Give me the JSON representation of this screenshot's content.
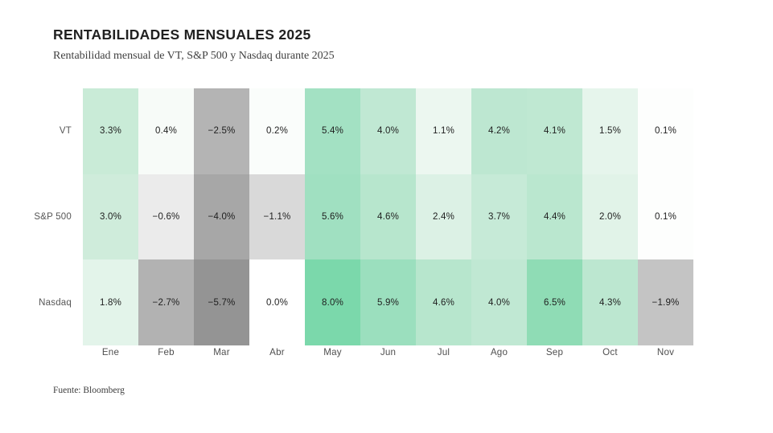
{
  "colors": {
    "background": "#ffffff",
    "title_text": "#212121",
    "subtitle_text": "#3f3f3f",
    "axis_label_text": "#4f4f4f",
    "cell_value_text": "#1e1e1e",
    "max_positive_green": "#7bd8ab",
    "max_negative_gray": "#949494",
    "zero_white": "#ffffff"
  },
  "chart_data": {
    "type": "heatmap",
    "title": "RENTABILIDADES MENSUALES 2025",
    "subtitle": "Rentabilidad mensual de VT, S&P 500 y Nasdaq durante 2025",
    "source": "Fuente: Bloomberg",
    "value_unit": "%",
    "colorscale_note": "positive values shaded green (darker = higher), negative values shaded gray (darker = lower), values near 0 white",
    "categories": [
      "Ene",
      "Feb",
      "Mar",
      "Abr",
      "May",
      "Jun",
      "Jul",
      "Ago",
      "Sep",
      "Oct",
      "Nov"
    ],
    "series": [
      {
        "name": "VT",
        "values": [
          3.3,
          0.4,
          -2.5,
          0.2,
          5.4,
          4.0,
          1.1,
          4.2,
          4.1,
          1.5,
          0.1
        ],
        "labels": [
          "3.3%",
          "0.4%",
          "−2.5%",
          "0.2%",
          "5.4%",
          "4.0%",
          "1.1%",
          "4.2%",
          "4.1%",
          "1.5%",
          "0.1%"
        ],
        "colors": [
          "#c9ebd7",
          "#f7fbf8",
          "#b4b4b4",
          "#fafdfb",
          "#a3e1c3",
          "#c0e8d3",
          "#ecf7f0",
          "#bde7d1",
          "#bfe8d2",
          "#e6f5ec",
          "#fdfefd"
        ]
      },
      {
        "name": "S&P 500",
        "values": [
          3.0,
          -0.6,
          -4.0,
          -1.1,
          5.6,
          4.6,
          2.4,
          3.7,
          4.4,
          2.0,
          0.1
        ],
        "labels": [
          "3.0%",
          "−0.6%",
          "−4.0%",
          "−1.1%",
          "5.6%",
          "4.6%",
          "2.4%",
          "3.7%",
          "4.4%",
          "2.0%",
          "0.1%"
        ],
        "colors": [
          "#cfecdb",
          "#ebebeb",
          "#a7a7a7",
          "#d9d9d9",
          "#a0e0c1",
          "#b7e6cd",
          "#dcf1e5",
          "#c6ead7",
          "#bae7cf",
          "#e1f3e8",
          "#fdfefd"
        ]
      },
      {
        "name": "Nasdaq",
        "values": [
          1.8,
          -2.7,
          -5.7,
          0.0,
          8.0,
          5.9,
          4.6,
          4.0,
          6.5,
          4.3,
          -1.9
        ],
        "labels": [
          "1.8%",
          "−2.7%",
          "−5.7%",
          "0.0%",
          "8.0%",
          "5.9%",
          "4.6%",
          "4.0%",
          "6.5%",
          "4.3%",
          "−1.9%"
        ],
        "colors": [
          "#e3f4ea",
          "#b2b2b2",
          "#949494",
          "#ffffff",
          "#7bd8ab",
          "#9bdfbe",
          "#b7e6cd",
          "#c0e8d3",
          "#8fdcb5",
          "#bce7d0",
          "#c4c4c4"
        ]
      }
    ]
  }
}
